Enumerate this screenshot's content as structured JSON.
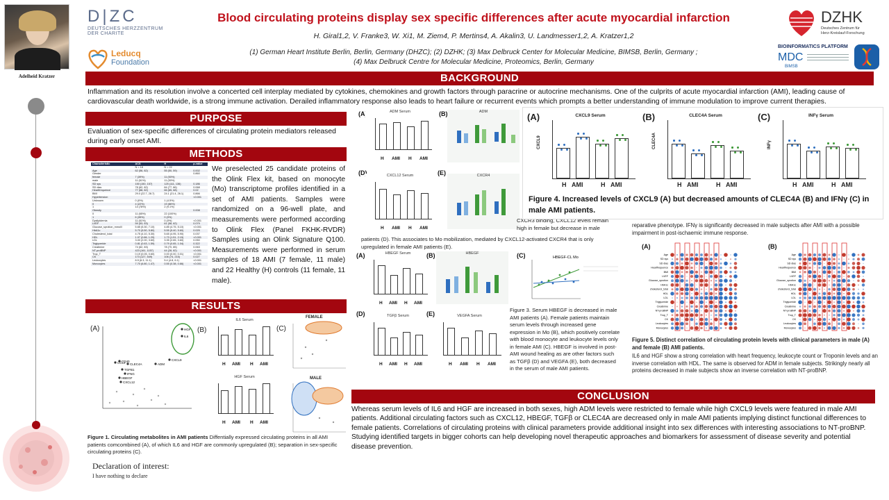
{
  "header": {
    "title": "Blood circulating proteins display sex specific differences after acute myocardial infarction",
    "authors": "H. Giral1,2, V. Franke3, W. Xi1, M. Ziem4, P. Mertins4, A. Akalin3, U. Landmesser1,2, A. Kratzer1,2",
    "affil_1": "(1)  German Heart Institute Berlin, Berlin, Germany (DHZC); (2) DZHK; (3) Max Delbruck Center for Molecular Medicine, BIMSB, Berlin, Germany ;",
    "affil_2": "(4) Max Delbruck Centre for Molecular Medicine, Proteomics, Berlin, Germany",
    "presenter_name": "Adelheid Kratzer",
    "logo_dhzc": "D|ZC",
    "logo_dhzc_sub1": "DEUTSCHES HERZZENTRUM",
    "logo_dhzc_sub2": "DER CHARITE",
    "logo_leducq_1": "Leducq",
    "logo_leducq_2": "Foundation",
    "logo_dzhk": "DZHK",
    "logo_dzhk_sub1": "Deutsches Zentrum für",
    "logo_dzhk_sub2": "Herz-Kreislauf-Forschung",
    "logo_bioinf": "BIOINFORMATICS PLATFORM",
    "logo_mdc": "MDC",
    "logo_bimsb": "BIMSB"
  },
  "sections": {
    "background": "BACKGROUND",
    "purpose": "PURPOSE",
    "methods": "METHODS",
    "results": "RESULTS",
    "conclusion": "CONCLUSION"
  },
  "background_text": "Inflammation and its resolution involve a concerted cell interplay mediated by cytokines, chemokines and growth factors through paracrine or autocrine mechanisms. One of the culprits of acute myocardial infarction (AMI), leading cause of cardiovascular death worldwide, is a strong immune activation. Derailed inflammatory response also leads to heart failure or recurrent events which prompts a better understanding of immune modulation to improve current therapies.",
  "purpose_text": "Evaluation of sex-specific differences of circulating protein mediators released during early onset AMI.",
  "methods_text": "We preselected 25 candidate proteins of the Olink Flex kit, based on monocyte (Mo) transcriptome profiles identified in a set of AMI patients. Samples were randomized on a 96-well plate, and measurements were performed according to Olink Flex (Panel FKHK-RVDR) Samples using an Olink Signature Q100. Measurements were performed in serum samples of 18 AMI (7 female, 11 male) and 22 Healthy (H) controls (11 female, 11 male).",
  "methods_table": {
    "headers": [
      "Characteristic",
      "ACS",
      "H",
      "p-value"
    ],
    "rows": [
      [
        "",
        "N = 18",
        "N = 22",
        ""
      ],
      [
        "Age",
        "62 (56, 82)",
        "55 (50, 59)",
        "0.002"
      ],
      [
        "Gender",
        "",
        "",
        "0.860"
      ],
      [
        "female",
        "7 (39%)",
        "11 (50%)",
        ""
      ],
      [
        "male",
        "11 (61%)",
        "11 (50%)",
        ""
      ],
      [
        "SD sys",
        "150 (150, 157)",
        "125 (111, 136)",
        "0.186"
      ],
      [
        "SD dias",
        "78 (62, 82)",
        "84 (77, 86)",
        "0.068"
      ],
      [
        "Heartfrequence",
        "77 (68, 82)",
        "66 (65, 68)",
        "0.02"
      ],
      [
        "BMI",
        "29.0 (22.7, 28.7)",
        "24.1 (21.4, 26.1)",
        "0.866"
      ],
      [
        "Hypertension",
        "",
        "",
        "<0.001"
      ],
      [
        "Unknown",
        "0 (0%)",
        "1 (4.5%)",
        ""
      ],
      [
        "0",
        "4 (22%)",
        "19 (86%)",
        ""
      ],
      [
        "1",
        "14 (78%)",
        "2 (9.1%)",
        ""
      ],
      [
        "Obesity",
        "",
        "",
        "0.008"
      ],
      [
        "0",
        "11 (65%)",
        "22 (100%)",
        ""
      ],
      [
        "1",
        "6 (35%)",
        "0 (0%)",
        ""
      ],
      [
        "Dyslipidemia",
        "11 (61%)",
        "0 (0%)",
        "<0.001"
      ],
      [
        "LVEF",
        "59 (53, 63)",
        "61 (58, 62)",
        "0.079"
      ],
      [
        "Glucose_sprotion_mmol/l",
        "5.65 (5.30, 7.10)",
        "4.85 (4.75, 5.10)",
        "<0.001"
      ],
      [
        "HbA1c",
        "5.70 (5.50, 5.80)",
        "5.55 (5.40, 5.60)",
        "0.025"
      ],
      [
        "Cholesterol_total",
        "4.75 (4.10, 5.30)",
        "5.65 (4.95, 5.90)",
        "0.037"
      ],
      [
        "HDL",
        "1.07 (0.86, 1.29)",
        "1.73 (1.51, 2.15)",
        "<0.001"
      ],
      [
        "LDL",
        "3.00 (2.00, 3.60)",
        "3.35 (2.65, 3.60)",
        "0.050"
      ],
      [
        "Triglyceride",
        "0.81 (0.63, 1.59)",
        "0.79 (0.65, 1.04)",
        "0.322"
      ],
      [
        "Creatinine",
        "74 (62, 83)",
        "78 (70, 85)",
        "0.063"
      ],
      [
        "NT-proBNP",
        "423 (161, 1157)",
        "44 (28, 82)",
        "<0.001"
      ],
      [
        "Trop_T",
        "0.19 (0.05, 0.60)",
        "0.00 (0.00, 0.01)",
        "<0.001"
      ],
      [
        "CK",
        "173 (127, 549)",
        "106 (74, 215)",
        "0.027"
      ],
      [
        "Leukocytes",
        "8.5 (6.3, 11.1)",
        "5.4 (4.8, 6.1)",
        "<0.001"
      ],
      [
        "Monocytes",
        "7.70 (6.80, 1.47)",
        "0.55 (0.38, 0.66)",
        "<0.001"
      ]
    ]
  },
  "results": {
    "fig1_caption_title": "Figure 1. Circulating metabolites in AMI patients",
    "fig1_caption_body": " Diffentially expressed circulating proteins in all AMI patients comcombined (A), of which IL6 and HGF are commonly upregulated (B); separation in sex-specific circulating proteins (C).",
    "fig1_panel_a": "(A)",
    "fig1_panel_b": "(B)",
    "fig1_panel_c": "(C)",
    "fig1_female": "FEMALE",
    "fig1_male": "MALE",
    "fig1_il6": "IL6 Serum",
    "fig1_hgf": "HGF Serum",
    "volcano_labels": [
      "HGF",
      "IL6",
      "CXCL9",
      "ADM",
      "CD40",
      "CCL2",
      "CLEC4A",
      "TGFB1",
      "IFNG",
      "HBEGF",
      "CXCL12"
    ],
    "fig3_caption": "Figure 3. Serum HBEGF is decreased in male AMI patients (A). Female patients maintain serum levels through increased gene expression in Mo (B), which positively correlate with blood monocyte and leukocyte levels only in female AMI (C). HBEGF is involved in post-AMI wound healing as are other factors such as TGFβ (D) and VEGFA (E), both decreased in the serum of male AMI patients.",
    "fig2_text_1": "CXCR3 binding, CXCL12 levels remain high in female but decrease in male",
    "fig2_text_2": "patients (D). This associates to Mo mobilization, mediated by CXCL12-activated CXCR4 that is only upregulated in female AMI patients (E).",
    "fig4_caption": "Figure 4. Increased levels of CXCL9 (A) but decreased amounts of CLEC4A (B) and IFNγ (C) in male AMI patients.",
    "fig4_panels": [
      {
        "label": "(A)",
        "title": "CXCL9 Serum",
        "ylabel": "CXCL9",
        "values": [
          0.55,
          0.75,
          0.62,
          0.72
        ]
      },
      {
        "label": "(B)",
        "title": "CLEC4A Serum",
        "ylabel": "CLEC4A",
        "values": [
          0.62,
          0.45,
          0.6,
          0.5
        ]
      },
      {
        "label": "(C)",
        "title": "INFγ Serum",
        "ylabel": "INFγ",
        "values": [
          0.62,
          0.5,
          0.58,
          0.55
        ]
      }
    ],
    "fig5_text": "reparative phenotype. IFNγ is significantly decreased in male subjects after AMI with a possible impairment in post-ischaemic immune response.",
    "fig5_caption_title": "Figure 5. Distinct correlation of circulating protein levels with clinical parameters  in male (A) and female (B) AMI patients.",
    "fig5_caption_body": "IL6 and HGF show a strong correlation with heart frequency, leukocyte count or Troponin levels and an inverse correlation with HDL. The same is observed for ADM in female subjects. Strikingly nearly all proteins decreased in male subjects show an inverse correlation with NT-proBNP.",
    "fig5_panel_a": "(A)",
    "fig5_panel_b": "(B)",
    "fig5_rows": [
      "Age",
      "SD sys",
      "SD dias",
      "Heartfrequence",
      "BMI",
      "LVEF",
      "Glucose_sprotion",
      "HbA1c",
      "cholesterol_total",
      "HDL",
      "LDL",
      "Triglyceride",
      "Creatinine",
      "NT-proBNP",
      "Trop_T",
      "CK",
      "Leukocytes",
      "Monocytes"
    ],
    "fig2_panels": {
      "a": "(A)",
      "b": "(B)",
      "d": "(D)",
      "e": "(E)",
      "adm_title": "ADM Serum",
      "adm_mo": "ADM",
      "cxcl12_title": "CXCL12 Serum",
      "cxcr4_title": "CXCR4"
    },
    "fig3_panels": {
      "a": "(A)",
      "b": "(B)",
      "c": "(C)",
      "d": "(D)",
      "e": "(E)",
      "hbegf_title": "HBEGF Serum",
      "hbegf_mo": "HBEGF",
      "hbegf_corr": "HBEGF-CL Mo",
      "tgfb_title": "TGFβ Serum",
      "vegfa_title": "VEGFA Serum"
    },
    "group_h": "H",
    "group_ami": "AMI"
  },
  "conclusion_text": "Whereas serum levels of IL6 and HGF are increased in both sexes, high ADM levels were restricted to female while high CXCL9 levels were featured in male AMI patients. Additional circulating factors such as CXCL12, HBEGF,  TGFβ or CLEC4A are decreased only in male AMI patients implying distinct functional differences to female patients. Correlations of circulating proteins with clinical parameters provide additional insight into sex differences with interesting associations to NT-proBNP. Studying identified targets in bigger cohorts can help developing novel therapeutic approaches and biomarkers for assessment of disease severity and potential disease prevention.",
  "declaration": {
    "title": "Declaration of interest:",
    "body": "I have nothing to declare"
  },
  "colors": {
    "accent_red": "#a3060f",
    "male_blue": "#2f6fbf",
    "female_green": "#3f9a3a",
    "table_header": "#1e2d52"
  }
}
